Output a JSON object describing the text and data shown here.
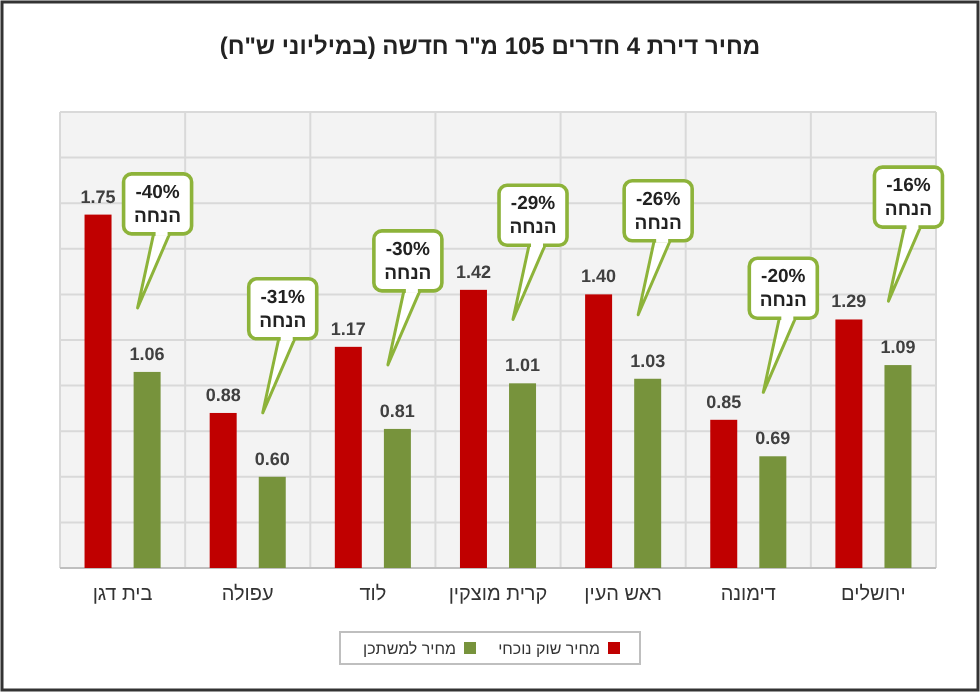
{
  "chart_data": {
    "type": "bar",
    "title": "מחיר דירת 4 חדרים 105 מ\"ר חדשה (במיליוני ש\"ח)",
    "categories": [
      "בית דגן",
      "עפולה",
      "לוד",
      "קרית מוצקין",
      "ראש העין",
      "דימונה",
      "ירושלים"
    ],
    "series": [
      {
        "name": "מחיר שוק נוכחי",
        "color": "#c00000",
        "values": [
          1.75,
          0.88,
          1.17,
          1.42,
          1.4,
          0.85,
          1.29
        ],
        "value_labels": [
          "1.75",
          "0.88",
          "1.17",
          "1.42",
          "1.40",
          "0.85",
          "1.29"
        ]
      },
      {
        "name": "מחיר למשתכן",
        "color": "#77933c",
        "values": [
          1.06,
          0.6,
          0.81,
          1.01,
          1.03,
          0.69,
          1.09
        ],
        "value_labels": [
          "1.06",
          "0.60",
          "0.81",
          "1.01",
          "1.03",
          "0.69",
          "1.09"
        ]
      }
    ],
    "ylim": [
      0.2,
      2.2
    ],
    "yticks": [
      {
        "value": 0.2,
        "label": null
      },
      {
        "value": 0.4,
        "label": null
      },
      {
        "value": 0.6,
        "label": null
      },
      {
        "value": 0.8,
        "label": null
      },
      {
        "value": 1.0,
        "label": null
      },
      {
        "value": 1.2,
        "label": null
      },
      {
        "value": 1.4,
        "label": null
      },
      {
        "value": 1.6,
        "label": null
      },
      {
        "value": 1.8,
        "label": null
      },
      {
        "value": 2.0,
        "label": null
      },
      {
        "value": 2.2,
        "label": null
      }
    ],
    "tick_labels": "x",
    "grid": true,
    "legend": "bottom",
    "annotations": [
      "-40%\nהנחה",
      "-31%\nהנחה",
      "-30%\nהנחה",
      "-29%\nהנחה",
      "-26%\nהנחה",
      "-20%\nהנחה",
      "-16%\nהנחה"
    ]
  }
}
